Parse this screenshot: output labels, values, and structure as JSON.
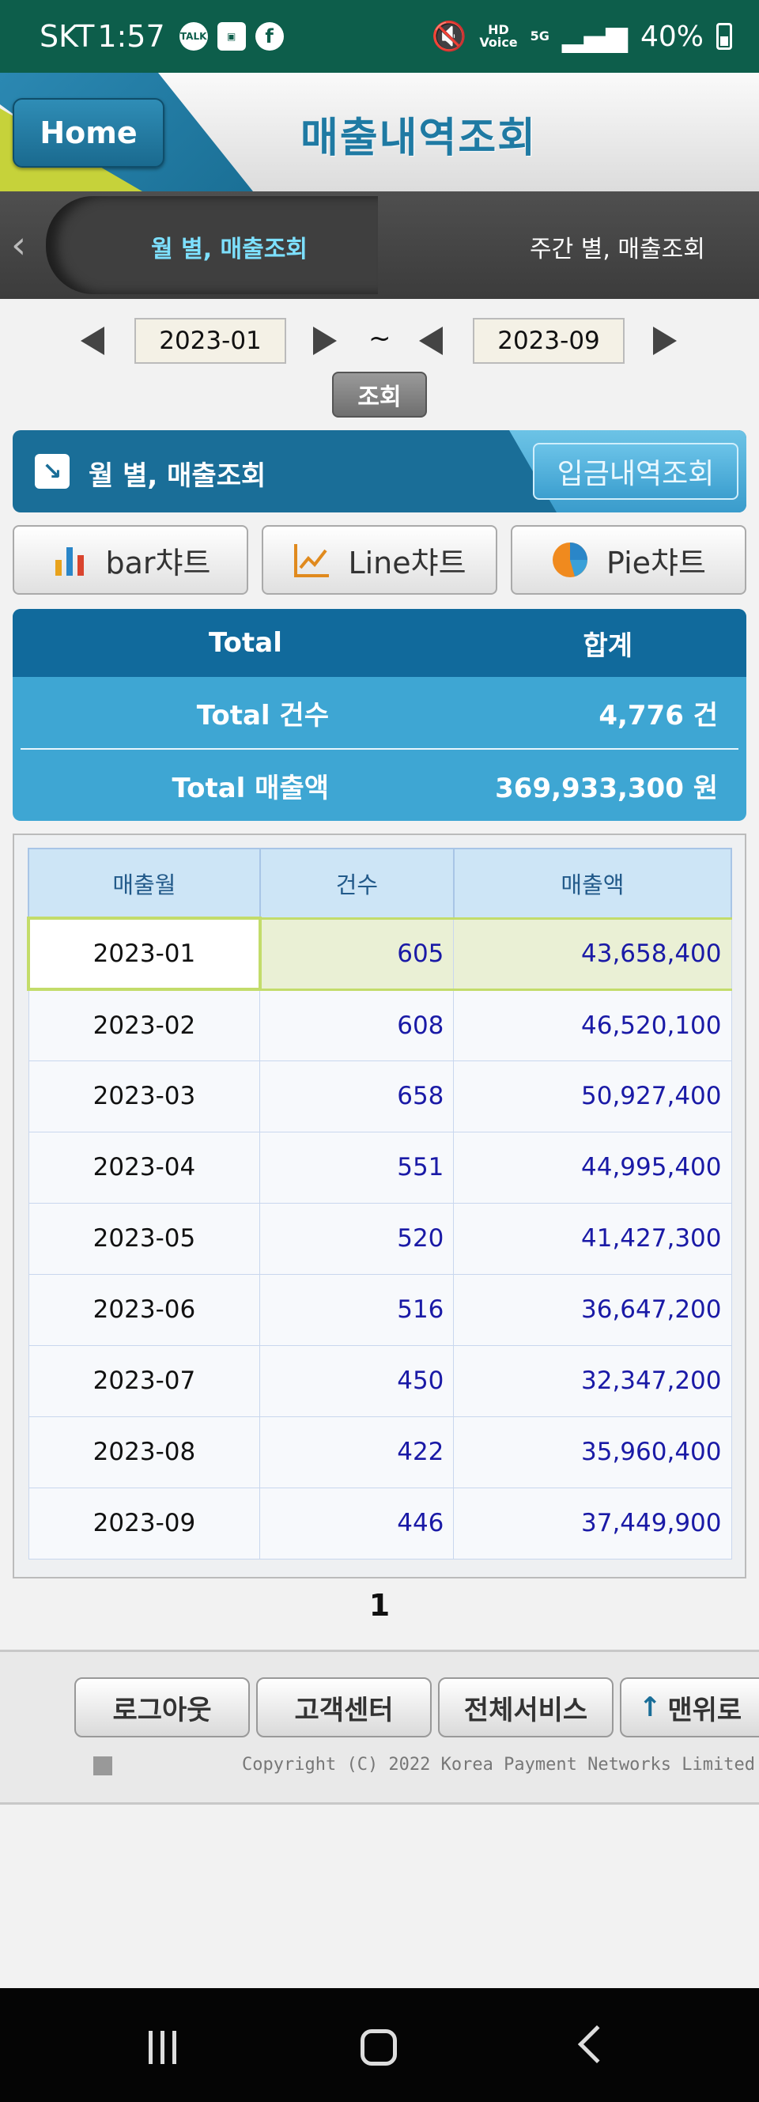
{
  "status_bar": {
    "carrier": "SKT",
    "time": "1:57",
    "network_top": "HD",
    "network_bottom": "Voice",
    "net_5g": "5G",
    "battery": "40%"
  },
  "header": {
    "home_label": "Home",
    "title": "매출내역조회"
  },
  "tabs": {
    "active": "월 별, 매출조회",
    "other": "주간 별, 매출조회"
  },
  "date_range": {
    "start": "2023-01",
    "separator": "~",
    "end": "2023-09",
    "query_label": "조회"
  },
  "section": {
    "title": "월 별, 매출조회",
    "deposit_button": "입금내역조회"
  },
  "chart_buttons": [
    {
      "label": "bar챠트",
      "icon": "bar-chart-icon"
    },
    {
      "label": "Line챠트",
      "icon": "line-chart-icon"
    },
    {
      "label": "Pie챠트",
      "icon": "pie-chart-icon"
    }
  ],
  "totals": {
    "header_left": "Total",
    "header_right": "합계",
    "count_label": "Total 건수",
    "count_value": "4,776 건",
    "sales_label": "Total 매출액",
    "sales_value": "369,933,300 원"
  },
  "table": {
    "headers": [
      "매출월",
      "건수",
      "매출액"
    ],
    "rows": [
      {
        "month": "2023-01",
        "count": "605",
        "amount": "43,658,400"
      },
      {
        "month": "2023-02",
        "count": "608",
        "amount": "46,520,100"
      },
      {
        "month": "2023-03",
        "count": "658",
        "amount": "50,927,400"
      },
      {
        "month": "2023-04",
        "count": "551",
        "amount": "44,995,400"
      },
      {
        "month": "2023-05",
        "count": "520",
        "amount": "41,427,300"
      },
      {
        "month": "2023-06",
        "count": "516",
        "amount": "36,647,200"
      },
      {
        "month": "2023-07",
        "count": "450",
        "amount": "32,347,200"
      },
      {
        "month": "2023-08",
        "count": "422",
        "amount": "35,960,400"
      },
      {
        "month": "2023-09",
        "count": "446",
        "amount": "37,449,900"
      }
    ]
  },
  "pagination": {
    "current": "1"
  },
  "footer": {
    "buttons": [
      "로그아웃",
      "고객센터",
      "전체서비스",
      "맨위로"
    ],
    "copyright": "Copyright (C) 2022 Korea Payment Networks Limited"
  },
  "colors": {
    "status_bar": "#0d5e4b",
    "accent": "#1a6e98",
    "table_value": "#1a1aa6"
  }
}
